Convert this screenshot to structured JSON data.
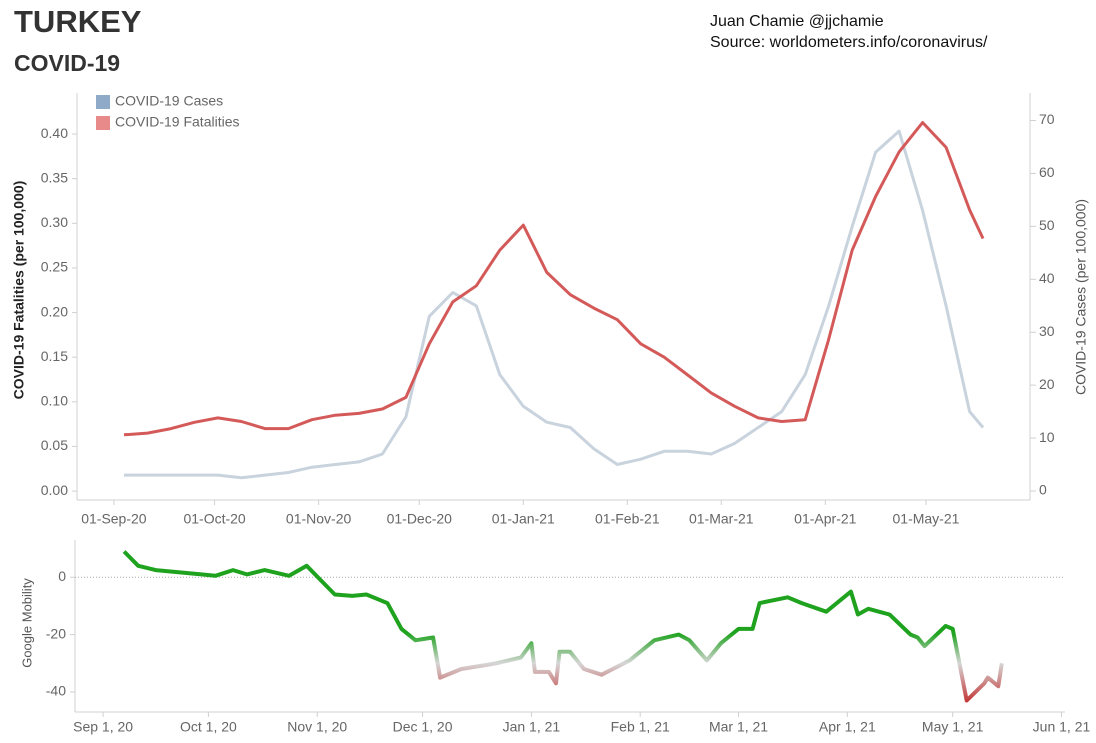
{
  "chart_data": [
    {
      "type": "line",
      "title": "TURKEY",
      "subtitle": "COVID-19",
      "annotations": [
        "Juan Chamie @jjchamie",
        "Source: worldometers.info/coronavirus/"
      ],
      "ylabel": "COVID-19 Fatalities (per 100,000)",
      "y2label": "COVID-19 Cases (per 100,000)",
      "legend": "top-left",
      "x": [
        "2020-09-04",
        "2020-09-11",
        "2020-09-18",
        "2020-09-25",
        "2020-10-02",
        "2020-10-09",
        "2020-10-16",
        "2020-10-23",
        "2020-10-30",
        "2020-11-06",
        "2020-11-13",
        "2020-11-20",
        "2020-11-27",
        "2020-12-04",
        "2020-12-11",
        "2020-12-18",
        "2020-12-25",
        "2021-01-01",
        "2021-01-08",
        "2021-01-15",
        "2021-01-22",
        "2021-01-29",
        "2021-02-05",
        "2021-02-12",
        "2021-02-19",
        "2021-02-26",
        "2021-03-05",
        "2021-03-12",
        "2021-03-19",
        "2021-03-26",
        "2021-04-02",
        "2021-04-09",
        "2021-04-16",
        "2021-04-23",
        "2021-04-30",
        "2021-05-07",
        "2021-05-14",
        "2021-05-18"
      ],
      "series": [
        {
          "name": "COVID-19 Cases",
          "axis": "y2",
          "color": "#c9d3de",
          "legend_color": "#8fa9c9",
          "values": [
            3,
            3,
            3,
            3,
            3,
            2.5,
            3,
            3.5,
            4.5,
            5,
            5.5,
            7,
            14,
            33,
            37.5,
            35,
            22,
            16,
            13,
            12,
            8,
            5,
            6,
            7.5,
            7.5,
            7,
            9,
            12,
            15,
            22,
            35,
            50,
            64,
            68,
            53,
            35,
            15,
            12
          ]
        },
        {
          "name": "COVID-19 Fatalities",
          "color": "#d45a5a",
          "legend_color": "#e88a8a",
          "values": [
            0.063,
            0.065,
            0.07,
            0.077,
            0.082,
            0.078,
            0.07,
            0.07,
            0.08,
            0.085,
            0.087,
            0.092,
            0.105,
            0.165,
            0.212,
            0.23,
            0.27,
            0.298,
            0.245,
            0.22,
            0.205,
            0.192,
            0.165,
            0.15,
            0.13,
            0.11,
            0.095,
            0.082,
            0.078,
            0.08,
            0.17,
            0.27,
            0.33,
            0.38,
            0.413,
            0.385,
            0.315,
            0.283
          ]
        }
      ],
      "xlim": [
        "2020-08-21",
        "2021-06-01"
      ],
      "xticks": [
        {
          "value": "2020-09-01",
          "label": "01-Sep-20"
        },
        {
          "value": "2020-10-01",
          "label": "01-Oct-20"
        },
        {
          "value": "2020-11-01",
          "label": "01-Nov-20"
        },
        {
          "value": "2020-12-01",
          "label": "01-Dec-20"
        },
        {
          "value": "2021-01-01",
          "label": "01-Jan-21"
        },
        {
          "value": "2021-02-01",
          "label": "01-Feb-21"
        },
        {
          "value": "2021-03-01",
          "label": "01-Mar-21"
        },
        {
          "value": "2021-04-01",
          "label": "01-Apr-21"
        },
        {
          "value": "2021-05-01",
          "label": "01-May-21"
        }
      ],
      "ylim": [
        -0.01,
        0.446
      ],
      "yticks": [
        {
          "value": 0,
          "label": "0.00"
        },
        0.05,
        {
          "value": 0.1,
          "label": "0.10"
        },
        0.15,
        {
          "value": 0.2,
          "label": "0.20"
        },
        0.25,
        {
          "value": 0.3,
          "label": "0.30"
        },
        0.35,
        {
          "value": 0.4,
          "label": "0.40"
        }
      ],
      "y2lim": [
        -1.7,
        75.2
      ],
      "y2ticks": [
        0,
        10,
        20,
        30,
        40,
        50,
        60,
        70
      ]
    },
    {
      "type": "line",
      "ylabel": "Google Mobility",
      "zero_line": true,
      "colors": [
        "#1fa31f",
        "#d6d6d6",
        "#c43c3c"
      ],
      "x": [
        "2020-09-07",
        "2020-09-11",
        "2020-09-16",
        "2020-09-29",
        "2020-10-03",
        "2020-10-08",
        "2020-10-12",
        "2020-10-17",
        "2020-10-24",
        "2020-10-29",
        "2020-11-02",
        "2020-11-06",
        "2020-11-11",
        "2020-11-15",
        "2020-11-21",
        "2020-11-25",
        "2020-11-29",
        "2020-12-04",
        "2020-12-06",
        "2020-12-12",
        "2020-12-22",
        "2020-12-29",
        "2021-01-01",
        "2021-01-02",
        "2021-01-06",
        "2021-01-08",
        "2021-01-09",
        "2021-01-12",
        "2021-01-16",
        "2021-01-21",
        "2021-01-29",
        "2021-02-05",
        "2021-02-12",
        "2021-02-15",
        "2021-02-20",
        "2021-02-24",
        "2021-03-01",
        "2021-03-05",
        "2021-03-07",
        "2021-03-15",
        "2021-03-19",
        "2021-03-26",
        "2021-04-02",
        "2021-04-04",
        "2021-04-07",
        "2021-04-10",
        "2021-04-13",
        "2021-04-19",
        "2021-04-21",
        "2021-04-23",
        "2021-04-29",
        "2021-05-01",
        "2021-05-05",
        "2021-05-10",
        "2021-05-11",
        "2021-05-14",
        "2021-05-15"
      ],
      "values": [
        9,
        4,
        2.5,
        1,
        0.5,
        2.5,
        1,
        2.5,
        0.5,
        4,
        -1,
        -6,
        -6.5,
        -6,
        -9,
        -18,
        -22,
        -21,
        -35,
        -32,
        -30,
        -28,
        -23,
        -33,
        -33,
        -37,
        -26,
        -26,
        -32,
        -34,
        -29,
        -22,
        -20,
        -22,
        -29,
        -23,
        -18,
        -18,
        -9,
        -7,
        -9,
        -12,
        -5,
        -13,
        -11,
        -12,
        -13,
        -20,
        -21,
        -24,
        -17,
        -18,
        -43,
        -37,
        -35,
        -38,
        -30
      ],
      "xlim": [
        "2020-08-24",
        "2021-06-02"
      ],
      "xticks": [
        {
          "value": "2020-09-01",
          "label": "Sep 1, 20"
        },
        {
          "value": "2020-10-01",
          "label": "Oct 1, 20"
        },
        {
          "value": "2020-11-01",
          "label": "Nov 1, 20"
        },
        {
          "value": "2020-12-01",
          "label": "Dec 1, 20"
        },
        {
          "value": "2021-01-01",
          "label": "Jan 1, 21"
        },
        {
          "value": "2021-02-01",
          "label": "Feb 1, 21"
        },
        {
          "value": "2021-03-01",
          "label": "Mar 1, 21"
        },
        {
          "value": "2021-04-01",
          "label": "Apr 1, 21"
        },
        {
          "value": "2021-05-01",
          "label": "May 1, 21"
        },
        {
          "value": "2021-06-01",
          "label": "Jun 1, 21"
        }
      ],
      "ylim": [
        -47,
        13
      ],
      "yticks": [
        0,
        -20,
        -40
      ]
    }
  ]
}
